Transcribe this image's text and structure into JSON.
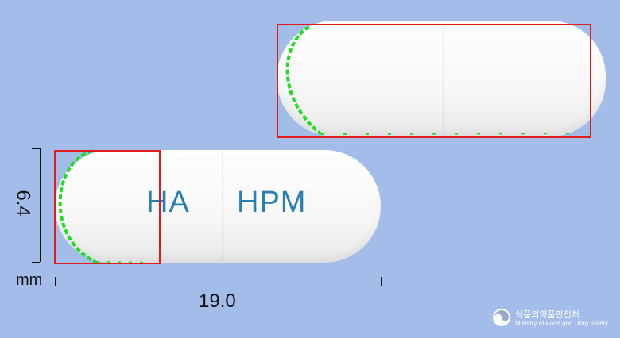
{
  "imprint": {
    "left": "HA",
    "right": "HPM"
  },
  "dimensions": {
    "height_value": "6.4",
    "length_value": "19.0",
    "unit": "mm"
  },
  "logo": {
    "name_ko": "식품의약품안전처",
    "name_en": "Ministry of Food and Drug Safety"
  },
  "colors": {
    "background": "#a3bce8",
    "capsule": "#ffffff",
    "imprint": "#2a7fb2",
    "highlight_box": "#e01b1b",
    "edge_marks": "#22dd22"
  }
}
